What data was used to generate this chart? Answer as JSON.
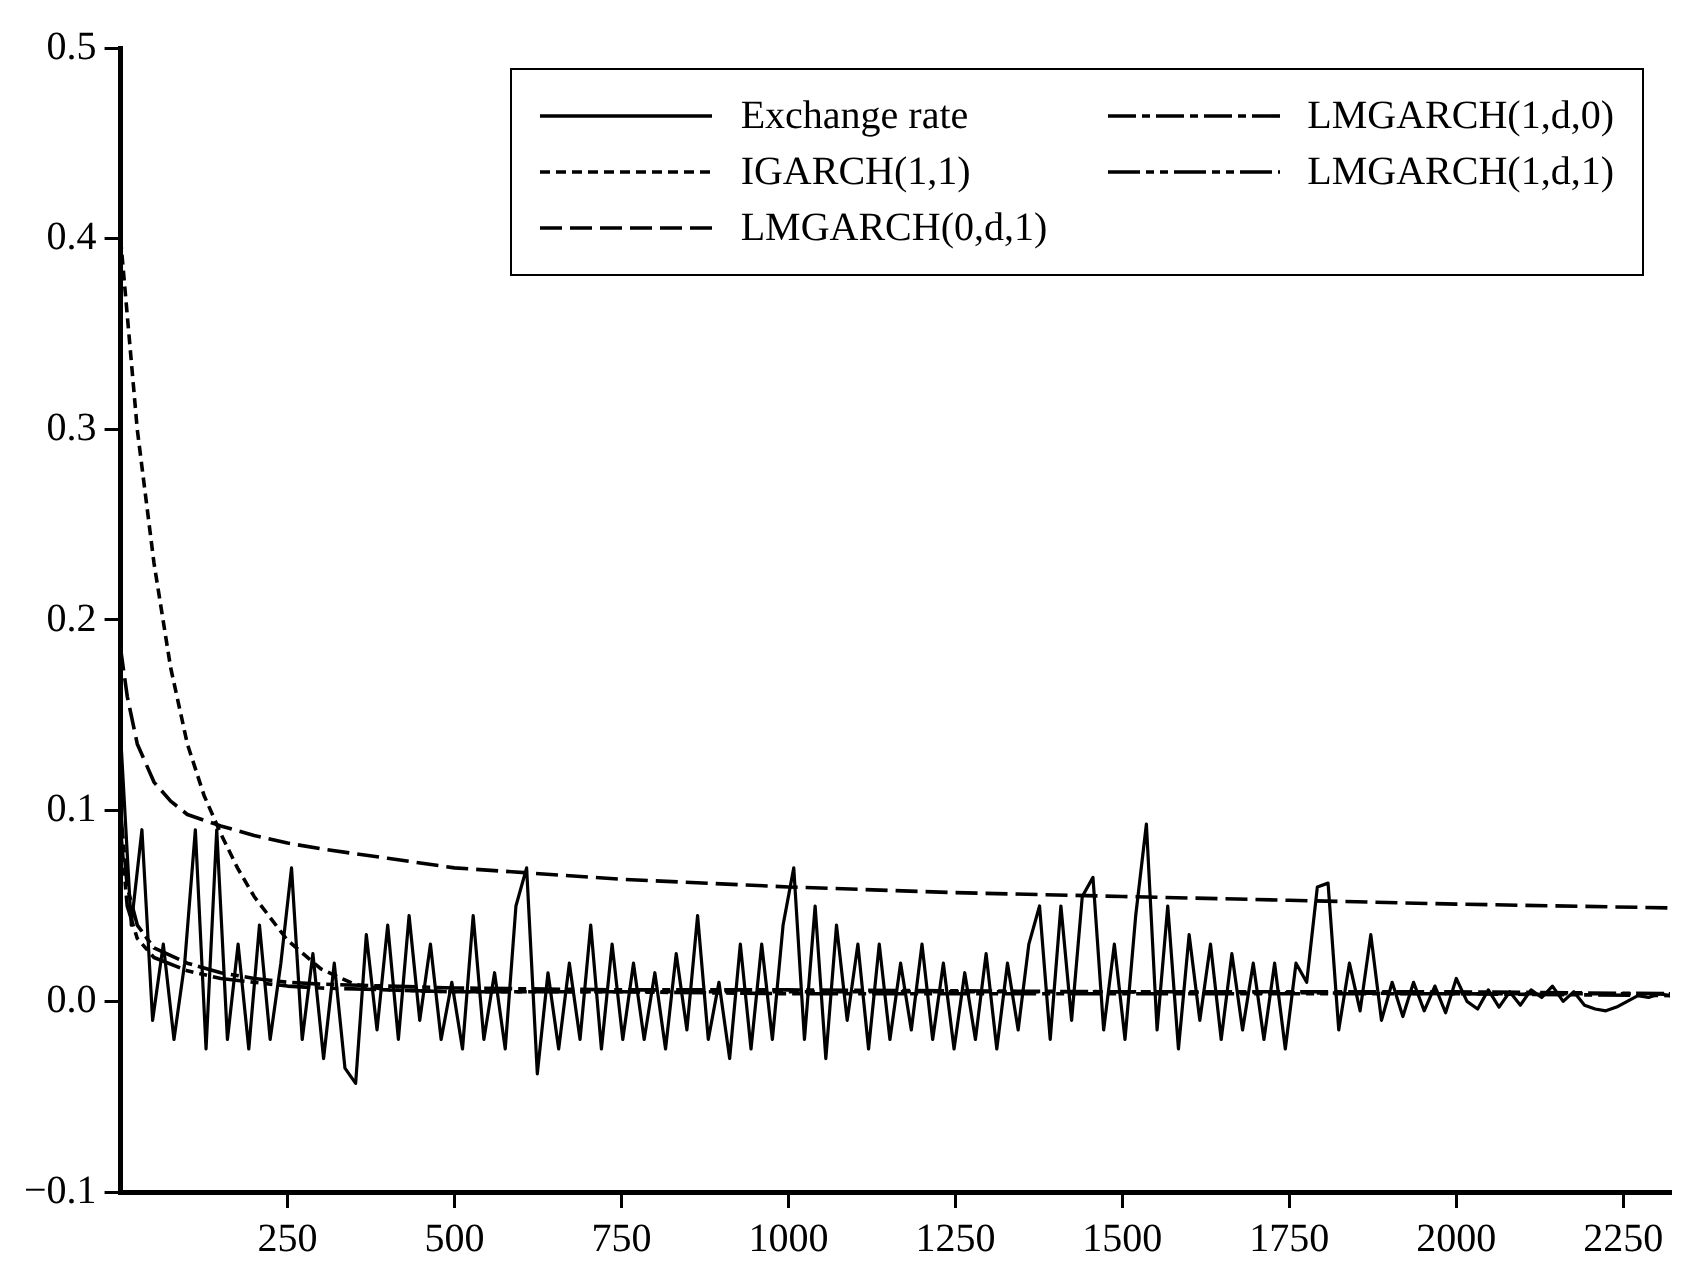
{
  "chart_data": {
    "type": "line",
    "xlim": [
      0,
      2320
    ],
    "xticks": [
      250,
      500,
      750,
      1000,
      1250,
      1500,
      1750,
      2000,
      2250
    ],
    "ylim": [
      -0.1,
      0.5
    ],
    "yticks": [
      {
        "value": -0.1,
        "label": "−0.1"
      },
      {
        "value": 0,
        "label": "0.0"
      },
      0.1,
      0.2,
      0.3,
      0.4,
      0.5
    ],
    "grid": false,
    "legend": "top right",
    "marker": "none",
    "series": [
      {
        "name": "Exchange rate",
        "color": "#000000",
        "line_style": "solid",
        "x": [
          0,
          16,
          32,
          48,
          64,
          80,
          96,
          112,
          128,
          144,
          160,
          176,
          192,
          208,
          224,
          240,
          256,
          272,
          288,
          304,
          320,
          336,
          352,
          368,
          384,
          400,
          416,
          432,
          448,
          464,
          480,
          496,
          512,
          528,
          544,
          560,
          576,
          592,
          608,
          624,
          640,
          656,
          672,
          688,
          704,
          720,
          736,
          752,
          768,
          784,
          800,
          816,
          832,
          848,
          864,
          880,
          896,
          912,
          928,
          944,
          960,
          976,
          992,
          1008,
          1024,
          1040,
          1056,
          1072,
          1088,
          1104,
          1120,
          1136,
          1152,
          1168,
          1184,
          1200,
          1216,
          1232,
          1248,
          1264,
          1280,
          1296,
          1312,
          1328,
          1344,
          1360,
          1376,
          1392,
          1408,
          1424,
          1440,
          1456,
          1472,
          1488,
          1504,
          1520,
          1536,
          1552,
          1568,
          1584,
          1600,
          1616,
          1632,
          1648,
          1664,
          1680,
          1696,
          1712,
          1728,
          1744,
          1760,
          1776,
          1792,
          1808,
          1824,
          1840,
          1856,
          1872,
          1888,
          1904,
          1920,
          1936,
          1952,
          1968,
          1984,
          2000,
          2016,
          2032,
          2048,
          2064,
          2080,
          2096,
          2112,
          2128,
          2144,
          2160,
          2176,
          2192,
          2208,
          2224,
          2240,
          2256,
          2272,
          2288,
          2304,
          2320
        ],
        "values": [
          0.14,
          0.04,
          0.09,
          -0.01,
          0.03,
          -0.02,
          0.02,
          0.09,
          -0.025,
          0.09,
          -0.02,
          0.03,
          -0.025,
          0.04,
          -0.02,
          0.02,
          0.07,
          -0.02,
          0.025,
          -0.03,
          0.02,
          -0.035,
          -0.043,
          0.035,
          -0.015,
          0.04,
          -0.02,
          0.045,
          -0.01,
          0.03,
          -0.02,
          0.01,
          -0.025,
          0.045,
          -0.02,
          0.015,
          -0.025,
          0.05,
          0.07,
          -0.038,
          0.015,
          -0.025,
          0.02,
          -0.02,
          0.04,
          -0.025,
          0.03,
          -0.02,
          0.02,
          -0.02,
          0.015,
          -0.025,
          0.025,
          -0.015,
          0.045,
          -0.02,
          0.01,
          -0.03,
          0.03,
          -0.025,
          0.03,
          -0.02,
          0.04,
          0.07,
          -0.02,
          0.05,
          -0.03,
          0.04,
          -0.01,
          0.03,
          -0.025,
          0.03,
          -0.02,
          0.02,
          -0.015,
          0.03,
          -0.02,
          0.02,
          -0.025,
          0.015,
          -0.02,
          0.025,
          -0.025,
          0.02,
          -0.015,
          0.03,
          0.05,
          -0.02,
          0.05,
          -0.01,
          0.055,
          0.065,
          -0.015,
          0.03,
          -0.02,
          0.045,
          0.093,
          -0.015,
          0.05,
          -0.025,
          0.035,
          -0.01,
          0.03,
          -0.02,
          0.025,
          -0.015,
          0.02,
          -0.02,
          0.02,
          -0.025,
          0.02,
          0.01,
          0.06,
          0.062,
          -0.015,
          0.02,
          -0.005,
          0.035,
          -0.01,
          0.01,
          -0.008,
          0.01,
          -0.005,
          0.008,
          -0.006,
          0.012,
          0,
          -0.004,
          0.006,
          -0.003,
          0.005,
          -0.002,
          0.006,
          0.002,
          0.008,
          0,
          0.005,
          -0.002,
          -0.004,
          -0.005,
          -0.003,
          0,
          0.003,
          0.002,
          0.004,
          0.003
        ]
      },
      {
        "name": "IGARCH(1,1)",
        "color": "#000000",
        "line_style": "dashed",
        "x": [
          0,
          10,
          25,
          50,
          75,
          100,
          125,
          150,
          175,
          200,
          250,
          300,
          350,
          400,
          500,
          750,
          1000,
          1500,
          2000,
          2320
        ],
        "values": [
          0.4,
          0.36,
          0.3,
          0.23,
          0.175,
          0.135,
          0.108,
          0.088,
          0.07,
          0.055,
          0.032,
          0.017,
          0.009,
          0.006,
          0.005,
          0.005,
          0.005,
          0.005,
          0.004,
          0.004
        ]
      },
      {
        "name": "LMGARCH(0,d,1)",
        "color": "#000000",
        "line_style": "dashed",
        "x": [
          0,
          10,
          25,
          50,
          75,
          100,
          150,
          200,
          250,
          300,
          400,
          500,
          750,
          1000,
          1250,
          1500,
          1750,
          2000,
          2320
        ],
        "values": [
          0.185,
          0.16,
          0.135,
          0.115,
          0.105,
          0.098,
          0.092,
          0.087,
          0.083,
          0.08,
          0.075,
          0.07,
          0.064,
          0.06,
          0.057,
          0.055,
          0.053,
          0.051,
          0.049
        ]
      },
      {
        "name": "LMGARCH(1,d,0)",
        "color": "#000000",
        "line_style": "dashed",
        "x": [
          0,
          10,
          25,
          50,
          100,
          150,
          200,
          250,
          300,
          400,
          500,
          750,
          1000,
          1500,
          2000,
          2320
        ],
        "values": [
          0.1,
          0.06,
          0.04,
          0.028,
          0.02,
          0.015,
          0.012,
          0.01,
          0.009,
          0.008,
          0.007,
          0.006,
          0.006,
          0.005,
          0.005,
          0.004
        ]
      },
      {
        "name": "LMGARCH(1,d,1)",
        "color": "#000000",
        "line_style": "dashed",
        "x": [
          0,
          10,
          25,
          50,
          100,
          150,
          200,
          250,
          300,
          400,
          500,
          750,
          1000,
          1500,
          2000,
          2320
        ],
        "values": [
          0.09,
          0.05,
          0.033,
          0.023,
          0.016,
          0.012,
          0.01,
          0.008,
          0.007,
          0.006,
          0.005,
          0.005,
          0.004,
          0.004,
          0.004,
          0.003
        ]
      }
    ]
  }
}
